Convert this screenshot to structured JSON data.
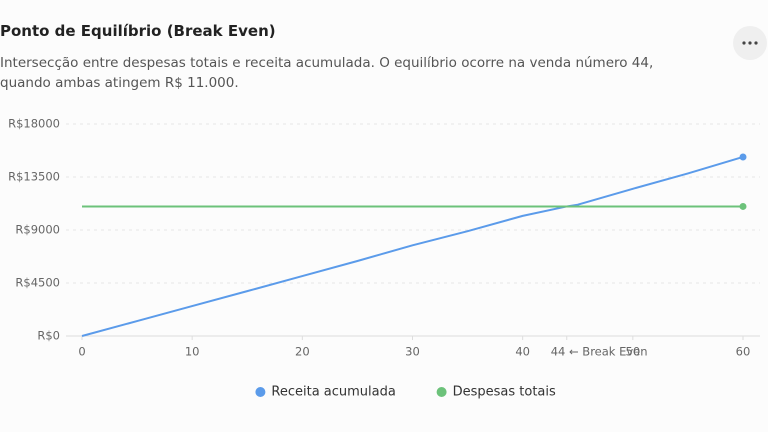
{
  "chart_data": {
    "type": "line",
    "title": "Ponto de Equilíbrio (Break Even)",
    "subtitle": "Intersecção entre despesas totais e receita acumulada. O equilíbrio ocorre na venda número 44, quando ambas atingem R$ 11.000.",
    "x": [
      0,
      5,
      10,
      15,
      20,
      25,
      30,
      35,
      40,
      44,
      45,
      50,
      55,
      60
    ],
    "series": [
      {
        "name": "Receita acumulada",
        "color": "#5b9bea",
        "values": [
          0,
          1270,
          2540,
          3810,
          5090,
          6370,
          7700,
          8900,
          10200,
          11000,
          11150,
          12500,
          13800,
          15200
        ]
      },
      {
        "name": "Despesas totais",
        "color": "#6cc27a",
        "values": [
          11000,
          11000,
          11000,
          11000,
          11000,
          11000,
          11000,
          11000,
          11000,
          11000,
          11000,
          11000,
          11000,
          11000
        ]
      }
    ],
    "xlim": [
      0,
      60
    ],
    "xticks": [
      0,
      10,
      20,
      30,
      40,
      {
        "value": 44,
        "label": "44 ← Break Even"
      },
      50,
      60
    ],
    "ylim": [
      0,
      18000
    ],
    "yticks": [
      {
        "value": 0,
        "label": "R$0"
      },
      {
        "value": 4500,
        "label": "R$4500"
      },
      {
        "value": 9000,
        "label": "R$9000"
      },
      {
        "value": 13500,
        "label": "R$13500"
      },
      {
        "value": 18000,
        "label": "R$18000"
      }
    ],
    "grid": true,
    "legend": "bottom"
  }
}
